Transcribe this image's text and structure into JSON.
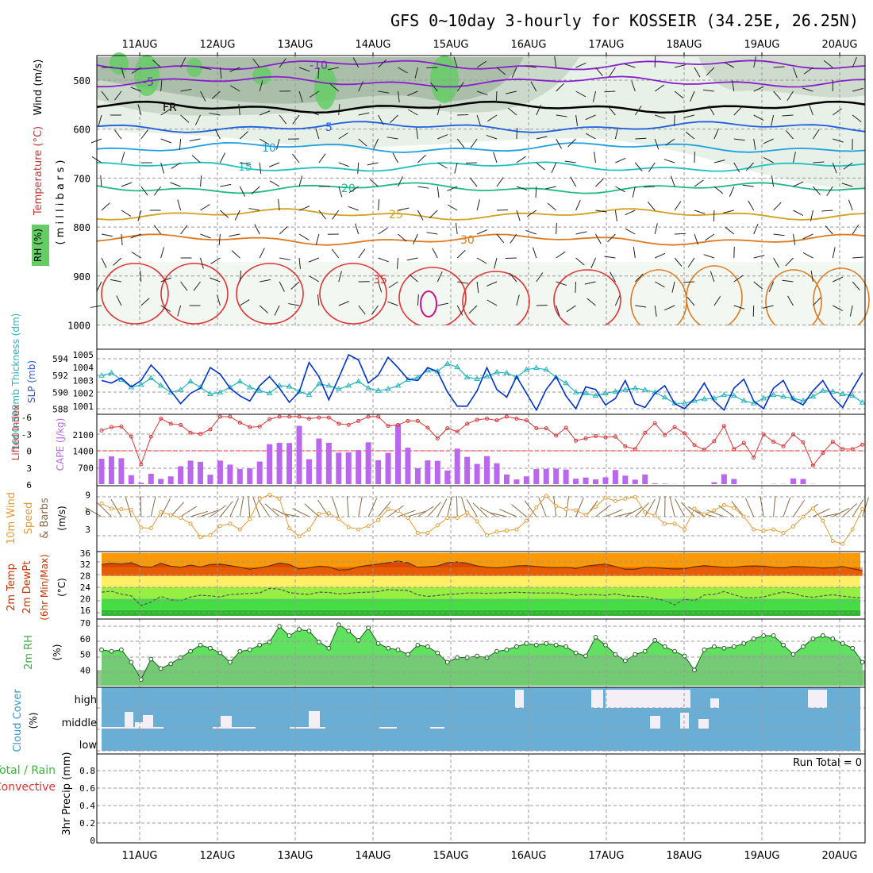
{
  "title": "GFS 0~10day 3-hourly for KOSSEIR (34.25E, 26.25N)",
  "dates": [
    "11AUG",
    "12AUG",
    "13AUG",
    "14AUG",
    "15AUG",
    "16AUG",
    "17AUG",
    "18AUG",
    "19AUG",
    "20AUG"
  ],
  "colors": {
    "grid": "#999999",
    "frame": "#000000",
    "rh_dark": "#8fa890",
    "rh_mid": "#c7d6c6",
    "rh_light": "#e6efe5",
    "rh_green": "#66cc66",
    "slp": "#0033cc",
    "thick": "#22b3bb",
    "li": "#dd3333",
    "cape": "#bb66ee",
    "wind": "#e69a33",
    "barb": "#8b6a44",
    "t2m": "#e65c00",
    "temp_top": "#cc3300",
    "rh2m": "#44dd44",
    "cloud": "#6aaed6",
    "cloud_fill": "#f4eef6"
  },
  "panels": {
    "upper": {
      "labels": {
        "rh": "RH (%)",
        "temperature": "Temperature (°C)",
        "wind": "Wind (m/s)",
        "pressure": "( m i l l i b a r s )"
      },
      "yticks": [
        "500",
        "600",
        "700",
        "800",
        "900",
        "1000"
      ],
      "contours": [
        {
          "label": "-10",
          "color": "#8a1fcc"
        },
        {
          "label": "-5",
          "color": "#8a1fcc"
        },
        {
          "label": "FR",
          "color": "#000000"
        },
        {
          "label": "5",
          "color": "#1f5ee0"
        },
        {
          "label": "10",
          "color": "#1fa0e0"
        },
        {
          "label": "15",
          "color": "#1fc0c0"
        },
        {
          "label": "20",
          "color": "#22b88a"
        },
        {
          "label": "25",
          "color": "#d4a020"
        },
        {
          "label": "30",
          "color": "#e07a20"
        },
        {
          "label": "35",
          "color": "#e03333"
        }
      ]
    },
    "slp": {
      "labels": {
        "thick": "1000-500mb Thickness (dm)",
        "slp": "SLP (mb)"
      },
      "left_ticks": [
        "594",
        "592",
        "590",
        "588"
      ],
      "right_ticks": [
        "1005",
        "1004",
        "1003",
        "1002",
        "1001"
      ]
    },
    "cape": {
      "labels": {
        "li": "Lifted Index",
        "cape": "CAPE (J/kg)"
      },
      "left_ticks": [
        "-6",
        "-3",
        "0",
        "3",
        "6"
      ],
      "right_ticks": [
        "2100",
        "1400",
        "700"
      ]
    },
    "wind10": {
      "labels": {
        "a": "10m Wind",
        "b": "Speed",
        "c": "& Barbs",
        "unit": "(m/s)"
      },
      "ticks": [
        "9",
        "6",
        "3"
      ]
    },
    "t2m": {
      "labels": {
        "a": "2m Temp",
        "b": "2m DewPt",
        "c": "(6hr Min/Max)",
        "unit": "(°C)"
      },
      "ticks": [
        "36",
        "32",
        "28",
        "24",
        "20",
        "16"
      ]
    },
    "rh2m": {
      "labels": {
        "a": "2m RH",
        "unit": "(%)"
      },
      "ticks": [
        "70",
        "60",
        "50",
        "40"
      ]
    },
    "cloud": {
      "labels": {
        "a": "Cloud Cover",
        "unit": "(%)"
      },
      "ticks": [
        "high",
        "middle",
        "low"
      ]
    },
    "precip": {
      "labels": {
        "a": "Total / Rain",
        "b": "Convective",
        "unit": "3hr Precip (mm)"
      },
      "ticks": [
        "0.8",
        "0.6",
        "0.4",
        "0.2",
        "0"
      ],
      "run_total": "Run Total = 0"
    }
  },
  "chart_data": {
    "type": "line",
    "title": "GFS 0~10day 3-hourly for KOSSEIR (34.25E, 26.25N)",
    "x_step_hours": 3,
    "slp_mb": [
      1003.0,
      1002.8,
      1003.2,
      1002.5,
      1003.0,
      1004.2,
      1003.4,
      1002.2,
      1001.2,
      1002.0,
      1002.4,
      1004.0,
      1003.5,
      1002.4,
      1001.8,
      1001.4,
      1002.6,
      1003.3,
      1002.4,
      1001.3,
      1002.1,
      1004.4,
      1003.3,
      1001.5,
      1003.2,
      1005.0,
      1004.6,
      1002.8,
      1003.4,
      1004.8,
      1004.0,
      1003.1,
      1003.0,
      1004.0,
      1003.7,
      1002.1,
      1001.0,
      1001.0,
      1002.2,
      1004.0,
      1002.3,
      1001.7,
      1003.3,
      1002.0,
      1000.7,
      1002.3,
      1003.3,
      1001.8,
      1000.8,
      1002.5,
      1002.3,
      1001.1,
      1001.6,
      1003.0,
      1001.2,
      1000.9,
      1002.0,
      1002.6,
      1001.2,
      1000.8,
      1001.6,
      1002.8,
      1001.4,
      1000.7,
      1002.4,
      1003.1,
      1001.4,
      1000.8,
      1002.4,
      1003.0,
      1001.5,
      1001.1,
      1002.2,
      1003.0,
      1001.7,
      1000.9,
      1002.3,
      1003.6
    ],
    "thickness_dm": [
      592.0,
      592.3,
      591.5,
      590.6,
      590.9,
      591.7,
      590.8,
      590.0,
      590.3,
      591.3,
      590.6,
      589.8,
      590.0,
      590.6,
      591.3,
      590.6,
      590.2,
      589.9,
      590.8,
      590.7,
      590.1,
      589.7,
      591.0,
      590.8,
      590.4,
      590.8,
      591.3,
      590.5,
      590.2,
      590.4,
      590.8,
      591.5,
      591.8,
      592.6,
      592.5,
      593.4,
      593.0,
      591.8,
      591.6,
      591.9,
      592.4,
      592.3,
      591.8,
      592.7,
      592.9,
      592.7,
      591.8,
      591.1,
      590.0,
      589.9,
      589.6,
      589.9,
      590.1,
      590.3,
      590.5,
      590.3,
      590.0,
      589.4,
      588.7,
      588.7,
      589.0,
      589.2,
      589.3,
      589.7,
      589.6,
      589.0,
      588.7,
      589.3,
      589.7,
      589.5,
      589.3,
      589.0,
      589.5,
      590.2,
      590.1,
      589.8,
      589.6,
      588.8
    ],
    "cape_jkg": [
      1080,
      1180,
      1100,
      380,
      60,
      440,
      220,
      330,
      760,
      1000,
      950,
      400,
      1000,
      830,
      640,
      670,
      960,
      1700,
      1760,
      1750,
      2480,
      1060,
      1940,
      1760,
      1340,
      1350,
      1450,
      1780,
      1020,
      1330,
      2540,
      1550,
      680,
      1010,
      990,
      580,
      1510,
      1160,
      860,
      1190,
      890,
      410,
      200,
      330,
      640,
      650,
      660,
      620,
      230,
      280,
      200,
      290,
      600,
      360,
      190,
      410,
      30,
      20,
      5,
      0,
      0,
      0,
      80,
      420,
      220,
      0,
      0,
      0,
      10,
      10,
      240,
      220,
      10,
      0,
      0,
      0,
      0,
      0
    ],
    "lifted_index": [
      -3.6,
      -4.2,
      -4.3,
      -2.5,
      2.4,
      -2.5,
      -5.7,
      -4.8,
      -4.6,
      -3.2,
      -3.0,
      -3.8,
      -6.3,
      -6.6,
      -5.0,
      -4.2,
      -4.3,
      -5.6,
      -6.1,
      -6.4,
      -7.1,
      -5.7,
      -5.9,
      -5.9,
      -4.8,
      -4.6,
      -5.3,
      -6.9,
      -6.6,
      -4.4,
      -4.6,
      -5.3,
      -5.3,
      -4.1,
      -2.2,
      -4.0,
      -3.4,
      -4.8,
      -5.5,
      -5.7,
      -5.4,
      -6.3,
      -5.7,
      -5.4,
      -4.0,
      -4.0,
      -2.7,
      -4.1,
      -1.8,
      -2.2,
      -2.6,
      -2.4,
      -2.5,
      -0.8,
      -0.3,
      -3.2,
      -4.9,
      -2.8,
      -4.2,
      -3.1,
      -1.0,
      -0.2,
      -1.7,
      -4.4,
      -0.3,
      -1.4,
      1.2,
      -2.9,
      -1.6,
      -0.8,
      -2.9,
      -1.5,
      2.6,
      0.4,
      -1.6,
      -0.3,
      -0.3,
      -1.1
    ],
    "wind10_ms": [
      7.5,
      6.6,
      6.5,
      6.4,
      3.3,
      3.2,
      6.0,
      5.5,
      5.0,
      4.0,
      1.7,
      2.0,
      3.6,
      4.0,
      3.0,
      4.8,
      8.3,
      9.0,
      8.3,
      3.2,
      1.8,
      3.0,
      5.7,
      5.8,
      4.8,
      3.4,
      3.0,
      3.6,
      4.6,
      6.5,
      6.2,
      5.0,
      2.4,
      2.4,
      3.7,
      5.0,
      5.0,
      5.9,
      4.4,
      2.0,
      2.6,
      2.8,
      3.0,
      4.5,
      6.8,
      8.8,
      7.0,
      6.5,
      6.3,
      5.5,
      6.9,
      8.5,
      7.9,
      8.3,
      8.6,
      6.0,
      5.4,
      4.0,
      4.0,
      3.0,
      6.6,
      5.6,
      6.3,
      7.2,
      6.7,
      5.2,
      3.0,
      2.8,
      3.0,
      2.4,
      3.5,
      5.2,
      6.6,
      4.5,
      1.0,
      0.5,
      3.0,
      6.5
    ],
    "t2m_c": [
      32.0,
      32.4,
      32.1,
      32.6,
      31.3,
      31.0,
      32.4,
      31.4,
      31.0,
      31.8,
      31.1,
      32.0,
      32.1,
      31.6,
      31.0,
      30.3,
      30.8,
      31.5,
      32.5,
      32.0,
      30.4,
      30.8,
      31.4,
      31.1,
      30.0,
      30.2,
      31.2,
      31.7,
      32.1,
      32.6,
      33.2,
      32.6,
      31.0,
      31.2,
      31.5,
      32.6,
      32.9,
      32.4,
      31.5,
      31.0,
      30.8,
      31.1,
      31.5,
      31.6,
      31.3,
      31.0,
      30.9,
      31.0,
      30.6,
      31.4,
      31.8,
      32.1,
      31.3,
      30.3,
      30.3,
      31.0,
      30.9,
      30.6,
      30.4,
      30.5,
      31.2,
      31.6,
      31.3,
      31.0,
      31.0,
      31.4,
      31.5,
      31.4,
      31.0,
      30.8,
      31.3,
      31.2,
      31.0,
      30.7,
      30.9,
      31.3,
      30.5,
      29.8
    ],
    "dewpt2m_c": [
      22.3,
      22.6,
      21.6,
      21.0,
      17.6,
      18.8,
      20.8,
      19.6,
      19.2,
      20.6,
      21.2,
      21.0,
      20.6,
      21.5,
      21.6,
      21.9,
      22.0,
      23.6,
      23.4,
      22.2,
      21.7,
      21.5,
      22.3,
      22.2,
      21.7,
      21.9,
      22.2,
      22.3,
      22.5,
      23.2,
      23.0,
      22.9,
      21.4,
      20.8,
      21.1,
      21.5,
      21.7,
      22.0,
      22.0,
      21.9,
      22.0,
      22.1,
      22.3,
      22.1,
      22.0,
      22.0,
      22.0,
      21.9,
      21.2,
      21.5,
      21.4,
      21.2,
      21.7,
      21.0,
      20.8,
      20.7,
      20.0,
      19.4,
      17.8,
      19.9,
      19.3,
      21.3,
      21.5,
      22.5,
      21.4,
      20.4,
      20.3,
      20.6,
      21.6,
      22.4,
      21.9,
      20.9,
      20.5,
      21.0,
      21.4,
      20.9,
      20.5,
      20.4
    ],
    "rh2m_pct": [
      53,
      52,
      53,
      45,
      34,
      47,
      41,
      44,
      48,
      52,
      56,
      54,
      51,
      45,
      52,
      53,
      56,
      58,
      68,
      62,
      66,
      65,
      58,
      54,
      69,
      65,
      59,
      67,
      57,
      54,
      53,
      50,
      56,
      55,
      51,
      45,
      48,
      48,
      49,
      48,
      52,
      53,
      55,
      57,
      56,
      57,
      56,
      55,
      51,
      49,
      61,
      56,
      50,
      46,
      50,
      52,
      59,
      55,
      52,
      49,
      40,
      53,
      55,
      54,
      55,
      57,
      60,
      62,
      62,
      56,
      50,
      55,
      60,
      62,
      60,
      57,
      54,
      45
    ],
    "precip_mm": [
      0,
      0,
      0,
      0,
      0,
      0,
      0,
      0,
      0,
      0
    ]
  }
}
